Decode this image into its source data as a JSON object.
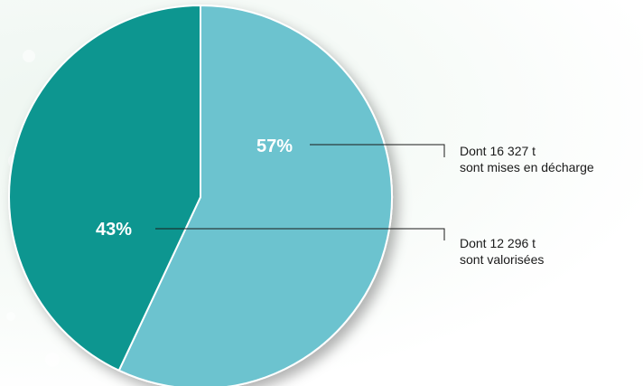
{
  "chart_data": {
    "type": "pie",
    "slices": [
      {
        "label": "57%",
        "value": 57,
        "color": "#6cc3cf"
      },
      {
        "label": "43%",
        "value": 43,
        "color": "#0e9690"
      }
    ],
    "annotations": [
      {
        "line1": "Dont 16 327 t",
        "line2": "sont mises en décharge"
      },
      {
        "line1": "Dont 12 296 t",
        "line2": "sont valorisées"
      }
    ]
  }
}
